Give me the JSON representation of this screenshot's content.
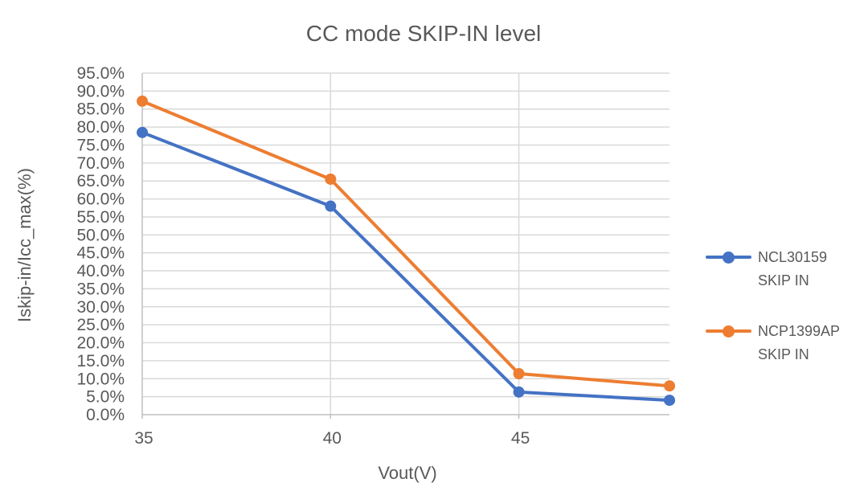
{
  "chart_data": {
    "type": "line",
    "title": "CC mode SKIP-IN level",
    "xlabel": "Vout(V)",
    "ylabel": "Iskip-in/Icc_max(%)",
    "x": [
      35,
      40,
      45,
      49
    ],
    "series": [
      {
        "name": "NCL30159 SKIP IN",
        "legend_lines": [
          "NCL30159",
          "SKIP IN"
        ],
        "color": "#4472C4",
        "values": [
          78.5,
          58.0,
          6.3,
          4.0
        ]
      },
      {
        "name": "NCP1399AP SKIP IN",
        "legend_lines": [
          "NCP1399AP",
          "SKIP IN"
        ],
        "color": "#ED7D31",
        "values": [
          87.2,
          65.5,
          11.4,
          8.0
        ]
      }
    ],
    "xlim": [
      35,
      49
    ],
    "ylim": [
      0,
      95
    ],
    "xticks": [
      {
        "value": 35,
        "label": "35"
      },
      {
        "value": 40,
        "label": "40"
      },
      {
        "value": 45,
        "label": "45"
      }
    ],
    "yticks": [
      {
        "value": 0,
        "label": "0.0%"
      },
      {
        "value": 5,
        "label": "5.0%"
      },
      {
        "value": 10,
        "label": "10.0%"
      },
      {
        "value": 15,
        "label": "15.0%"
      },
      {
        "value": 20,
        "label": "20.0%"
      },
      {
        "value": 25,
        "label": "25.0%"
      },
      {
        "value": 30,
        "label": "30.0%"
      },
      {
        "value": 35,
        "label": "35.0%"
      },
      {
        "value": 40,
        "label": "40.0%"
      },
      {
        "value": 45,
        "label": "45.0%"
      },
      {
        "value": 50,
        "label": "50.0%"
      },
      {
        "value": 55,
        "label": "55.0%"
      },
      {
        "value": 60,
        "label": "60.0%"
      },
      {
        "value": 65,
        "label": "65.0%"
      },
      {
        "value": 70,
        "label": "70.0%"
      },
      {
        "value": 75,
        "label": "75.0%"
      },
      {
        "value": 80,
        "label": "80.0%"
      },
      {
        "value": 85,
        "label": "85.0%"
      },
      {
        "value": 90,
        "label": "90.0%"
      },
      {
        "value": 95,
        "label": "95.0%"
      }
    ],
    "grid": true,
    "legend_position": "right",
    "colors": {
      "gridline": "#D9D9D9",
      "axis_line": "#BFBFBF",
      "text": "#595959",
      "title": "#595959"
    }
  }
}
